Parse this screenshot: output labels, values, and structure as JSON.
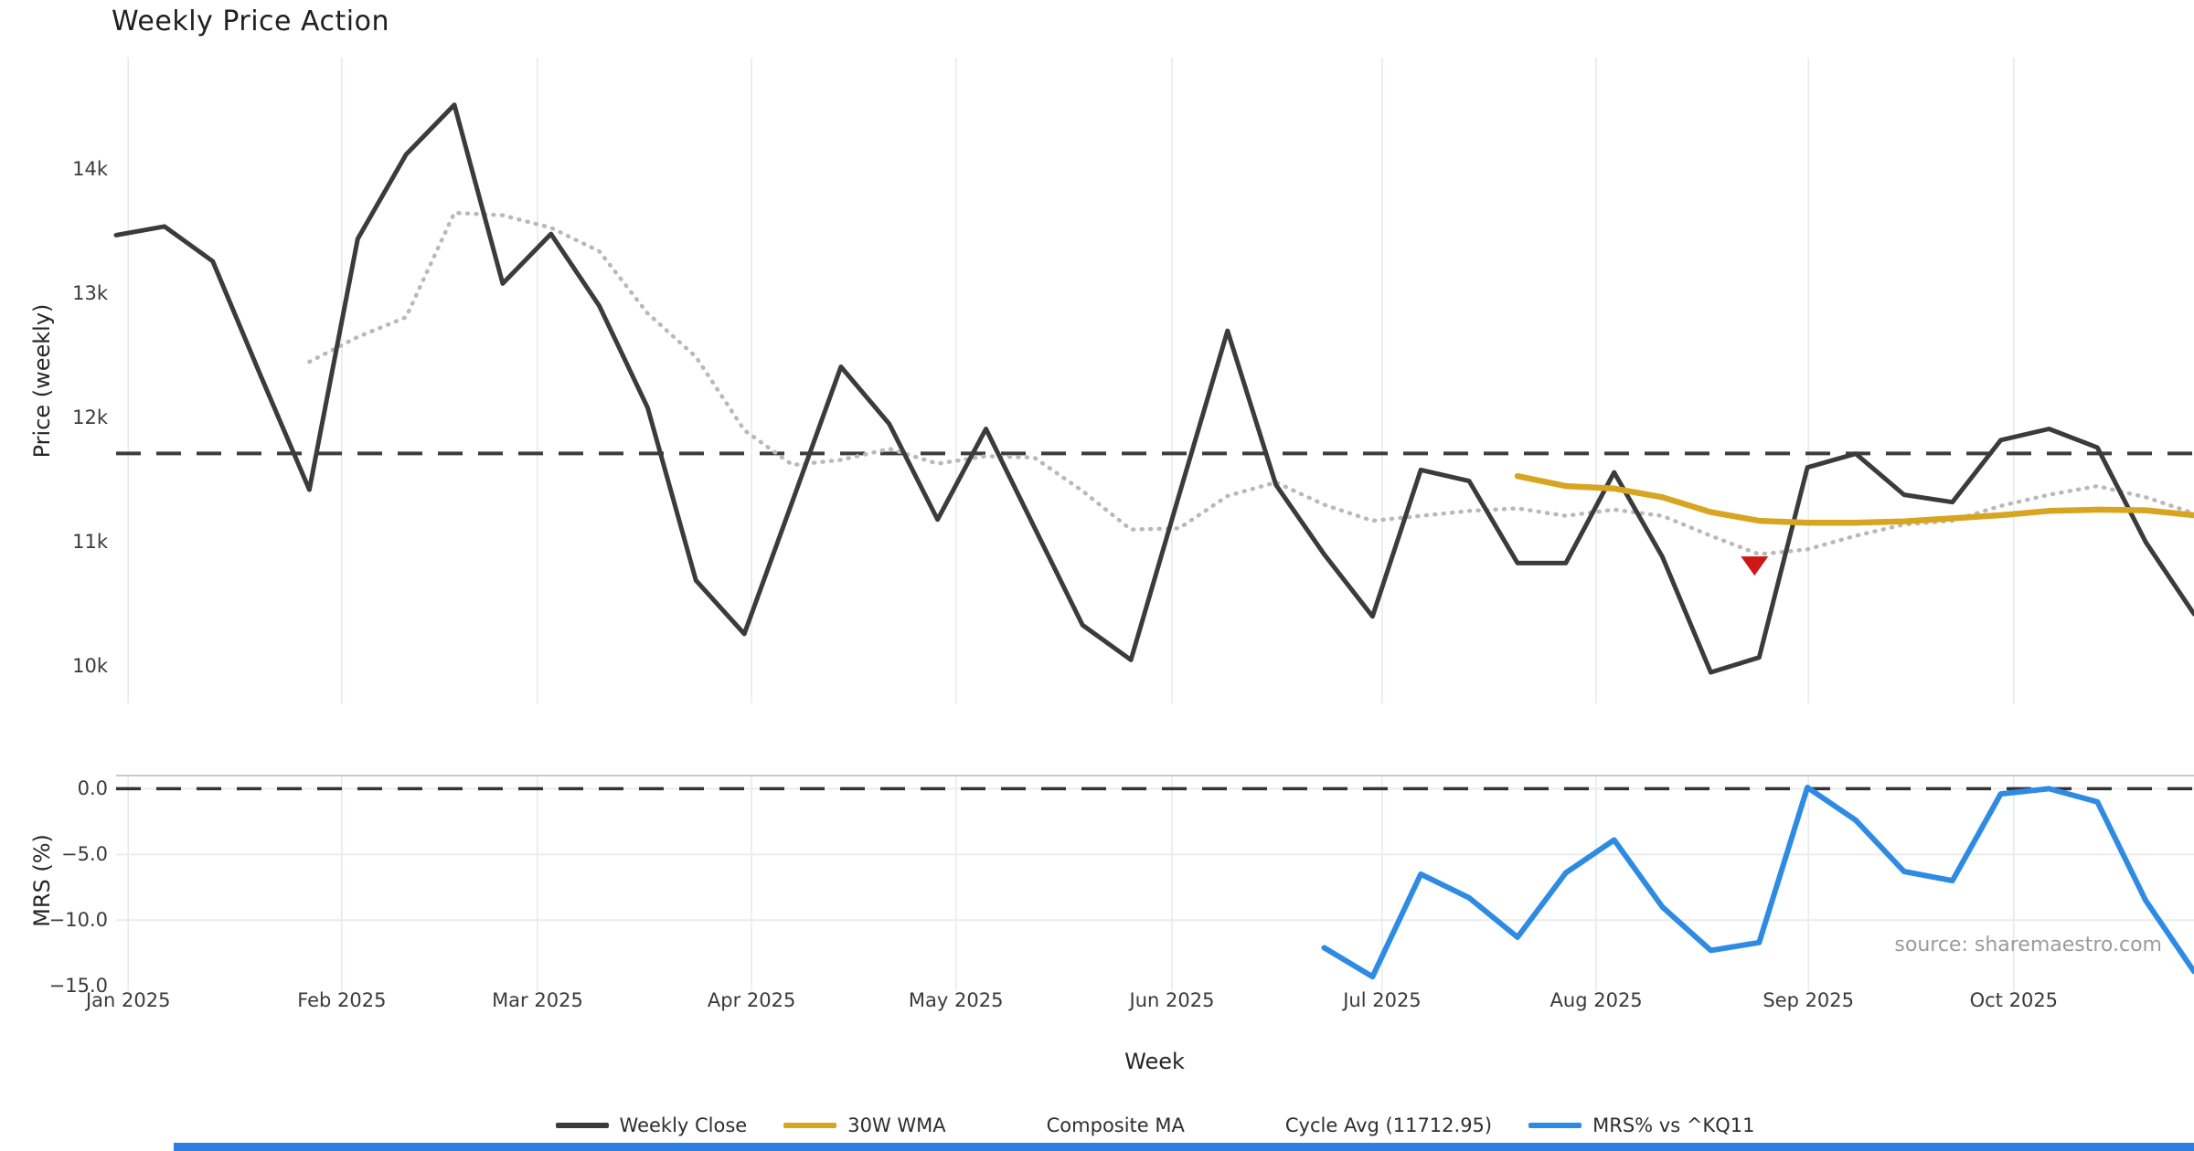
{
  "title": "Weekly Price Action",
  "source_note": "source: sharemaestro.com",
  "x_axis": {
    "label": "Week",
    "weeks_total": 43,
    "month_ticks": [
      {
        "label": "Jan 2025",
        "week": 0.25
      },
      {
        "label": "Feb 2025",
        "week": 4.67
      },
      {
        "label": "Mar 2025",
        "week": 8.72
      },
      {
        "label": "Apr 2025",
        "week": 13.15
      },
      {
        "label": "May 2025",
        "week": 17.38
      },
      {
        "label": "Jun 2025",
        "week": 21.85
      },
      {
        "label": "Jul 2025",
        "week": 26.2
      },
      {
        "label": "Aug 2025",
        "week": 30.63
      },
      {
        "label": "Sep 2025",
        "week": 35.02
      },
      {
        "label": "Oct 2025",
        "week": 39.27
      }
    ]
  },
  "chart_data": [
    {
      "type": "line",
      "panel": "price",
      "ylabel": "Price (weekly)",
      "ylim": [
        9700,
        14900
      ],
      "grid": "vertical-months",
      "yticks": [
        {
          "label": "14k",
          "value": 14000
        },
        {
          "label": "13k",
          "value": 13000
        },
        {
          "label": "12k",
          "value": 12000
        },
        {
          "label": "11k",
          "value": 11000
        },
        {
          "label": "10k",
          "value": 10000
        }
      ],
      "cycle_avg": {
        "name": "Cycle Avg (11712.95)",
        "value": 11712.95,
        "color": "#3c3c3c",
        "style": "dashed"
      },
      "series": [
        {
          "name": "Weekly Close",
          "color": "#3b3b3b",
          "style": "solid",
          "width": 5,
          "start_week": 0,
          "values": [
            13470,
            13540,
            13260,
            12330,
            11420,
            13440,
            14120,
            14520,
            13080,
            13480,
            12900,
            12080,
            10690,
            10260,
            11330,
            12410,
            11950,
            11180,
            11910,
            11120,
            10330,
            10050,
            11380,
            12700,
            11460,
            10900,
            10400,
            11580,
            11490,
            10830,
            10830,
            11560,
            10880,
            9950,
            10070,
            11600,
            11710,
            11380,
            11320,
            11820,
            11910,
            11760,
            11000,
            10420
          ]
        },
        {
          "name": "Composite MA",
          "color": "#b9b9b9",
          "style": "dotted",
          "width": 4.5,
          "start_week": 4,
          "values": [
            12450,
            12650,
            12810,
            13650,
            13630,
            13530,
            13340,
            12840,
            12490,
            11900,
            11620,
            11660,
            11750,
            11630,
            11690,
            11680,
            11410,
            11100,
            11110,
            11370,
            11480,
            11300,
            11170,
            11210,
            11250,
            11270,
            11210,
            11260,
            11210,
            11050,
            10900,
            10940,
            11050,
            11140,
            11170,
            11290,
            11380,
            11450,
            11360,
            11230
          ]
        },
        {
          "name": "30W WMA",
          "color": "#d7a51f",
          "style": "solid",
          "width": 6.5,
          "start_week": 29,
          "values": [
            11530,
            11450,
            11430,
            11360,
            11240,
            11170,
            11155,
            11155,
            11165,
            11190,
            11215,
            11250,
            11260,
            11255,
            11215
          ]
        }
      ],
      "marker": {
        "shape": "triangle-down",
        "color": "#cf1717",
        "week": 34,
        "value": 10810
      }
    },
    {
      "type": "line",
      "panel": "mrs",
      "ylabel": "MRS (%)",
      "ylim": [
        -15.4,
        1.0
      ],
      "grid": "horizontal+vertical-months",
      "yticks": [
        {
          "label": "0.0",
          "value": 0
        },
        {
          "label": "−5.0",
          "value": -5
        },
        {
          "label": "−10.0",
          "value": -10
        },
        {
          "label": "−15.0",
          "value": -15
        }
      ],
      "zero_line": {
        "value": 0,
        "color": "#333333",
        "style": "dashed"
      },
      "series": [
        {
          "name": "MRS% vs ^KQ11",
          "color": "#2e8be4",
          "style": "solid",
          "width": 6,
          "start_week": 25,
          "values": [
            -12.1,
            -14.3,
            -6.5,
            -8.3,
            -11.3,
            -6.4,
            -3.9,
            -9.0,
            -12.3,
            -11.7,
            0.1,
            -2.4,
            -6.3,
            -7.0,
            -0.4,
            0.0,
            -1.0,
            -8.5,
            -13.9
          ]
        }
      ]
    }
  ],
  "legend": [
    {
      "label": "Weekly Close",
      "color": "#3b3b3b",
      "style": "solid"
    },
    {
      "label": "30W WMA",
      "color": "#d7a51f",
      "style": "solid"
    },
    {
      "label": "Composite MA",
      "color": "#b9b9b9",
      "style": "dotted"
    },
    {
      "label": "Cycle Avg (11712.95)",
      "color": "#3c3c3c",
      "style": "dashed"
    },
    {
      "label": "MRS% vs ^KQ11",
      "color": "#2e8be4",
      "style": "solid"
    }
  ]
}
